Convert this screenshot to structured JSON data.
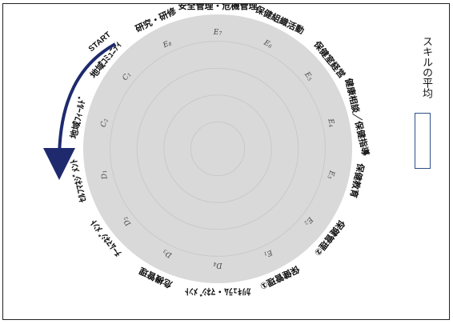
{
  "chart_data": {
    "type": "radar",
    "series": [
      {
        "name": "スキルの平均",
        "values": []
      }
    ],
    "axes": [
      {
        "code": "E7",
        "label": "安全管理・危機管理"
      },
      {
        "code": "E6",
        "label": "保健組織活動"
      },
      {
        "code": "E5",
        "label": "保健室経営"
      },
      {
        "code": "E4",
        "label": "健康相談／保健指導"
      },
      {
        "code": "E3",
        "label": "保健教育"
      },
      {
        "code": "E2",
        "label": "保健管理②"
      },
      {
        "code": "E1",
        "label": "保健管理①"
      },
      {
        "code": "D4",
        "label": "ｶﾘｷｭﾗﾑ・ﾏﾈｼﾞﾒﾝﾄ"
      },
      {
        "code": "D3",
        "label": "危機管理"
      },
      {
        "code": "D2",
        "label": "ﾁｰﾑﾏﾈｼﾞﾒﾝﾄ"
      },
      {
        "code": "D1",
        "label": "ｾﾙﾌﾏﾈｼﾞﾒﾝﾄ"
      },
      {
        "code": "C2",
        "label": "地域ﾌｨｰﾙﾄﾞ"
      },
      {
        "code": "C1",
        "label": "地域ｺﾐｭﾆﾃｨ"
      },
      {
        "code": "E8",
        "label": "研究・研修"
      }
    ],
    "start_label": "START",
    "grid": true,
    "legend": "right",
    "colors": {
      "disc_fill": "#d9d9d9",
      "grid": "#c9c9c9",
      "arrow": "#1f2a6e",
      "legend_border": "#2d4f8a"
    }
  },
  "legend": {
    "label": "スキルの平均"
  }
}
